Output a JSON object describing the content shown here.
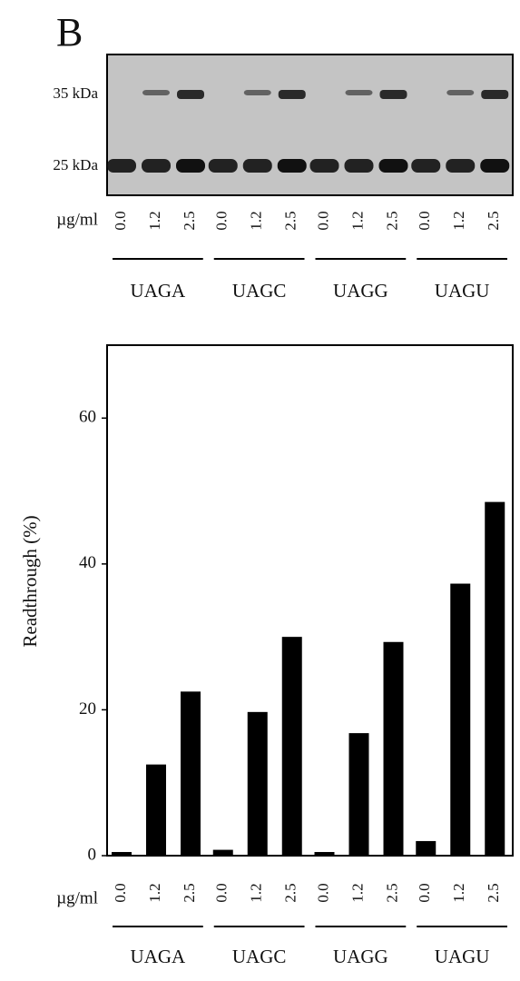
{
  "panel_label": "B",
  "blot": {
    "markers": [
      "35 kDa",
      "25 kDa"
    ],
    "unit_label": "µg/ml",
    "lanes": [
      "0.0",
      "1.2",
      "2.5",
      "0.0",
      "1.2",
      "2.5",
      "0.0",
      "1.2",
      "2.5",
      "0.0",
      "1.2",
      "2.5"
    ],
    "groups": [
      "UAGA",
      "UAGC",
      "UAGG",
      "UAGU"
    ]
  },
  "chart_data": {
    "type": "bar",
    "y_label": "Readthrough (%)",
    "x_label": "µg/ml",
    "categories": [
      "0.0",
      "1.2",
      "2.5",
      "0.0",
      "1.2",
      "2.5",
      "0.0",
      "1.2",
      "2.5",
      "0.0",
      "1.2",
      "2.5"
    ],
    "groups": [
      "UAGA",
      "UAGC",
      "UAGG",
      "UAGU"
    ],
    "values": [
      0.5,
      12.5,
      22.5,
      0.8,
      19.7,
      30,
      0.5,
      16.8,
      29.3,
      2,
      37.3,
      48.5
    ],
    "color": "#000000",
    "ylim": [
      0,
      70
    ],
    "yticks": [
      0,
      20,
      40,
      60
    ],
    "grid": false
  }
}
